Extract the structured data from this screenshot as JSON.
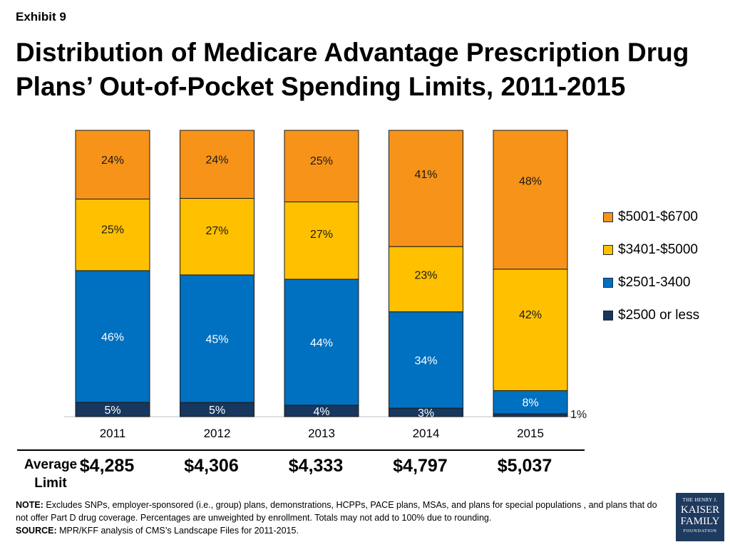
{
  "exhibit": "Exhibit 9",
  "title": "Distribution of Medicare Advantage Prescription Drug Plans’ Out-of-Pocket Spending Limits, 2011-2015",
  "chart_data": {
    "type": "bar",
    "stacked": true,
    "normalized": true,
    "categories": [
      "2011",
      "2012",
      "2013",
      "2014",
      "2015"
    ],
    "series": [
      {
        "name": "$2500 or less",
        "color": "#17375e",
        "values": [
          5,
          5,
          4,
          3,
          1
        ],
        "labels": [
          "5%",
          "5%",
          "4%",
          "3%",
          "1%"
        ]
      },
      {
        "name": "$2501-3400",
        "color": "#0070c0",
        "values": [
          46,
          45,
          44,
          34,
          8
        ],
        "labels": [
          "46%",
          "45%",
          "44%",
          "34%",
          "8%"
        ]
      },
      {
        "name": "$3401-$5000",
        "color": "#ffc000",
        "values": [
          25,
          27,
          27,
          23,
          42
        ],
        "labels": [
          "25%",
          "27%",
          "27%",
          "23%",
          "42%"
        ]
      },
      {
        "name": "$5001-$6700",
        "color": "#f79318",
        "values": [
          24,
          24,
          25,
          41,
          48
        ],
        "labels": [
          "24%",
          "24%",
          "25%",
          "41%",
          "48%"
        ]
      }
    ],
    "legend_position": "right",
    "grid": false
  },
  "average_limit": {
    "label": "Average Limit",
    "values": [
      "$4,285",
      "$4,306",
      "$4,333",
      "$4,797",
      "$5,037"
    ]
  },
  "note": {
    "note_label": "NOTE:",
    "note_text": " Excludes SNPs, employer-sponsored (i.e., group) plans, demonstrations, HCPPs, PACE plans, MSAs, and plans for special populations , and plans that do not offer Part D drug coverage. Percentages are unweighted by enrollment. Totals may not add to 100% due to rounding.",
    "source_label": "SOURCE:",
    "source_text": "  MPR/KFF analysis of CMS’s Landscape Files for 2011-2015."
  },
  "logo": {
    "line1": "THE HENRY J.",
    "line2": "KAISER",
    "line3": "FAMILY",
    "line4": "FOUNDATION"
  }
}
